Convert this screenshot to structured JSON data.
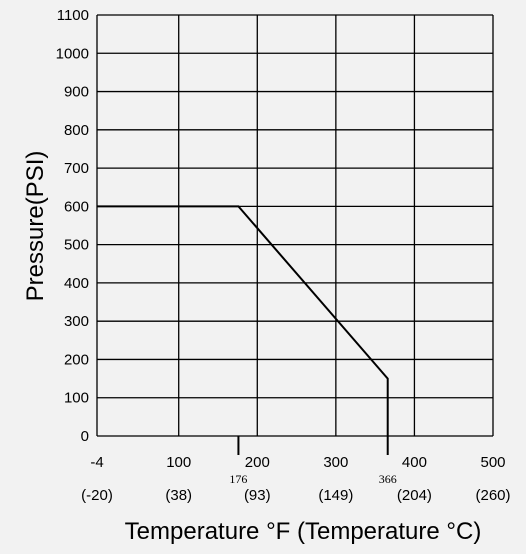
{
  "chart_data": {
    "type": "line",
    "title": "",
    "xlabel": "Temperature °F (Temperature °C)",
    "ylabel": "Pressure(PSI)",
    "xlim": [
      -4,
      500
    ],
    "ylim": [
      0,
      1100
    ],
    "grid": true,
    "x_ticks": [
      {
        "f": "-4",
        "c": "(-20)"
      },
      {
        "f": "100",
        "c": "(38)"
      },
      {
        "f": "200",
        "c": "(93)"
      },
      {
        "f": "300",
        "c": "(149)"
      },
      {
        "f": "400",
        "c": "(204)"
      },
      {
        "f": "500",
        "c": "(260)"
      }
    ],
    "y_ticks": [
      "0",
      "100",
      "200",
      "300",
      "400",
      "500",
      "600",
      "700",
      "800",
      "900",
      "1000",
      "1100"
    ],
    "annotations": [
      "176",
      "366"
    ],
    "series": [
      {
        "x": [
          -4,
          176,
          366,
          366,
          366
        ],
        "y": [
          600,
          600,
          150,
          150,
          0
        ]
      }
    ]
  }
}
